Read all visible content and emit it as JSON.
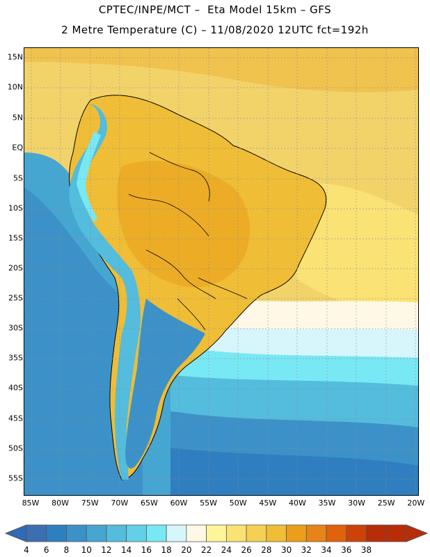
{
  "header": {
    "line1": "CPTEC/INPE/MCT –  Eta Model 15km – GFS",
    "line2": "2 Metre Temperature (C) – 11/08/2020 12UTC fct=192h"
  },
  "map": {
    "lat_labels": [
      "15N",
      "10N",
      "5N",
      "EQ",
      "5S",
      "10S",
      "15S",
      "20S",
      "25S",
      "30S",
      "35S",
      "40S",
      "45S",
      "50S",
      "55S"
    ],
    "lon_labels": [
      "85W",
      "80W",
      "75W",
      "70W",
      "65W",
      "60W",
      "55W",
      "50W",
      "45W",
      "40W",
      "35W",
      "30W",
      "25W",
      "20W"
    ],
    "background_color": "#f2d36a"
  },
  "colorbar": {
    "labels": [
      "4",
      "6",
      "8",
      "10",
      "12",
      "14",
      "16",
      "18",
      "20",
      "22",
      "24",
      "26",
      "28",
      "30",
      "32",
      "34",
      "36",
      "38"
    ],
    "colors": [
      "#3b6fb0",
      "#2f7fc0",
      "#3c92c8",
      "#46a6d2",
      "#54bcdc",
      "#62d0e8",
      "#78e8f4",
      "#d6f6fb",
      "#fff8e6",
      "#fff59a",
      "#fbe274",
      "#f5d052",
      "#efbd36",
      "#ea9e1a",
      "#e6841a",
      "#e0620a",
      "#cc4208",
      "#b82c08"
    ],
    "low_color": "#2f6bb8",
    "high_color": "#b82c08"
  }
}
